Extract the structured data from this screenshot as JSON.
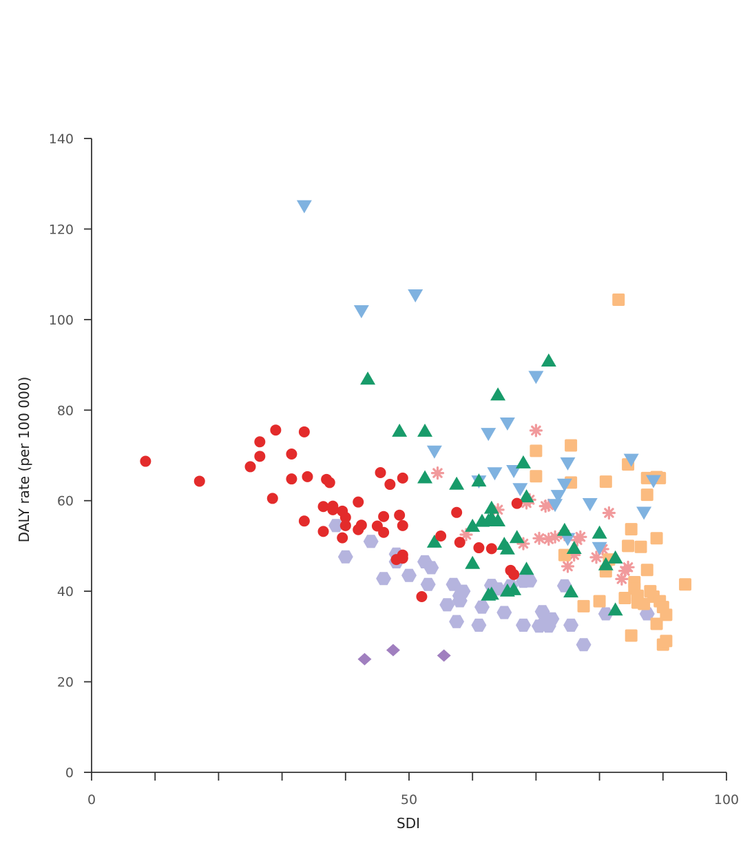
{
  "chart_data": {
    "type": "scatter",
    "title": "",
    "xlabel": "SDI",
    "ylabel": "DALY rate (per 100 000)",
    "xlim": [
      0,
      100
    ],
    "ylim": [
      0,
      140
    ],
    "x_ticks": [
      0,
      50,
      100
    ],
    "x_minor_ticks": [
      10,
      20,
      30,
      40,
      60,
      70,
      80,
      90
    ],
    "y_ticks": [
      0,
      20,
      40,
      60,
      80,
      100,
      120,
      140
    ],
    "grid": false,
    "legend": "none",
    "series": [
      {
        "marker": "circle",
        "color": "#e32b2b",
        "points": [
          [
            8.5,
            68.7
          ],
          [
            17,
            64.3
          ],
          [
            25,
            67.5
          ],
          [
            26.5,
            73
          ],
          [
            26.5,
            69.8
          ],
          [
            28.5,
            60.5
          ],
          [
            29,
            75.6
          ],
          [
            31.5,
            70.3
          ],
          [
            31.5,
            64.8
          ],
          [
            33.5,
            75.2
          ],
          [
            33.5,
            55.5
          ],
          [
            34,
            65.3
          ],
          [
            36.5,
            58.7
          ],
          [
            36.5,
            53.2
          ],
          [
            37,
            64.7
          ],
          [
            37.5,
            64
          ],
          [
            38,
            58.8
          ],
          [
            38,
            58
          ],
          [
            39.5,
            51.8
          ],
          [
            39.5,
            57.7
          ],
          [
            40,
            56.3
          ],
          [
            40,
            54.5
          ],
          [
            42,
            59.7
          ],
          [
            42,
            53.6
          ],
          [
            42.5,
            54.6
          ],
          [
            45,
            54.4
          ],
          [
            45.5,
            66.2
          ],
          [
            46,
            56.5
          ],
          [
            46,
            53
          ],
          [
            47,
            63.6
          ],
          [
            48,
            47
          ],
          [
            48.5,
            56.8
          ],
          [
            49,
            54.5
          ],
          [
            49,
            48
          ],
          [
            49,
            47.3
          ],
          [
            49,
            65
          ],
          [
            52,
            38.8
          ],
          [
            55,
            52.2
          ],
          [
            57.5,
            57.4
          ],
          [
            58,
            50.8
          ],
          [
            61,
            49.6
          ],
          [
            63,
            49.4
          ],
          [
            66,
            44.6
          ],
          [
            66.5,
            43.7
          ],
          [
            67,
            59.4
          ]
        ]
      },
      {
        "marker": "triangle-down",
        "color": "#7fb2e0",
        "points": [
          [
            33.5,
            125
          ],
          [
            42.5,
            101.8
          ],
          [
            51,
            105.3
          ],
          [
            54,
            70.8
          ],
          [
            61,
            64.2
          ],
          [
            62.5,
            74.7
          ],
          [
            63.5,
            66
          ],
          [
            65.5,
            77
          ],
          [
            66.5,
            66.5
          ],
          [
            67.5,
            62.5
          ],
          [
            70,
            87.3
          ],
          [
            73,
            59
          ],
          [
            73.5,
            61
          ],
          [
            74.5,
            63.5
          ],
          [
            75,
            68.2
          ],
          [
            75,
            51.5
          ],
          [
            78.5,
            59.2
          ],
          [
            80,
            49.5
          ],
          [
            85,
            69
          ],
          [
            87,
            57.3
          ],
          [
            88.5,
            64.3
          ]
        ]
      },
      {
        "marker": "triangle-up",
        "color": "#189b6a",
        "points": [
          [
            43.5,
            87
          ],
          [
            48.5,
            75.5
          ],
          [
            52.5,
            75.5
          ],
          [
            52.5,
            65.2
          ],
          [
            54,
            51
          ],
          [
            57.5,
            63.8
          ],
          [
            60,
            46.3
          ],
          [
            60,
            54.5
          ],
          [
            61,
            64.5
          ],
          [
            61.5,
            55.6
          ],
          [
            62.5,
            39.3
          ],
          [
            62.5,
            55.7
          ],
          [
            63,
            58.5
          ],
          [
            63,
            56.3
          ],
          [
            63,
            39.5
          ],
          [
            64,
            83.5
          ],
          [
            64,
            55.7
          ],
          [
            65,
            50.5
          ],
          [
            65.5,
            40.2
          ],
          [
            65.5,
            49.5
          ],
          [
            66.5,
            40.5
          ],
          [
            67,
            52
          ],
          [
            68,
            68.5
          ],
          [
            68.5,
            45
          ],
          [
            68.5,
            61
          ],
          [
            72,
            91
          ],
          [
            74.5,
            53.6
          ],
          [
            75.5,
            40
          ],
          [
            76,
            49.6
          ],
          [
            80,
            53
          ],
          [
            81,
            46
          ],
          [
            82.5,
            36
          ],
          [
            82.5,
            47.5
          ]
        ]
      },
      {
        "marker": "square",
        "color": "#fbbb7f",
        "points": [
          [
            70,
            71
          ],
          [
            70,
            65.4
          ],
          [
            74.5,
            48
          ],
          [
            75.5,
            64
          ],
          [
            75.5,
            72.2
          ],
          [
            77.5,
            36.7
          ],
          [
            80,
            37.8
          ],
          [
            81,
            64.2
          ],
          [
            81,
            44.4
          ],
          [
            81.5,
            47
          ],
          [
            83,
            104.4
          ],
          [
            84,
            38.5
          ],
          [
            84.5,
            68
          ],
          [
            84.5,
            50
          ],
          [
            85,
            30.2
          ],
          [
            85,
            53.7
          ],
          [
            85.5,
            42
          ],
          [
            85.5,
            40.6
          ],
          [
            86,
            37.5
          ],
          [
            86,
            39
          ],
          [
            86.5,
            49.8
          ],
          [
            87,
            37.2
          ],
          [
            87.5,
            44.7
          ],
          [
            87.5,
            61.3
          ],
          [
            87.5,
            65
          ],
          [
            88,
            40
          ],
          [
            88.5,
            38.8
          ],
          [
            89,
            51.7
          ],
          [
            89,
            65.2
          ],
          [
            89,
            32.8
          ],
          [
            89.5,
            65
          ],
          [
            89.5,
            37.8
          ],
          [
            90,
            36.5
          ],
          [
            90,
            28.2
          ],
          [
            90.5,
            34.8
          ],
          [
            90.5,
            29
          ],
          [
            93.5,
            41.5
          ]
        ]
      },
      {
        "marker": "hexagon",
        "color": "#b5b4de",
        "points": [
          [
            38.5,
            54.5
          ],
          [
            40,
            47.6
          ],
          [
            44,
            51
          ],
          [
            46,
            42.8
          ],
          [
            48,
            48.2
          ],
          [
            48,
            46.5
          ],
          [
            50,
            43.5
          ],
          [
            52.5,
            46.5
          ],
          [
            53,
            41.5
          ],
          [
            53.5,
            45.2
          ],
          [
            56,
            37
          ],
          [
            57,
            41.5
          ],
          [
            57.5,
            33.3
          ],
          [
            58,
            39
          ],
          [
            58,
            37.9
          ],
          [
            58.5,
            40
          ],
          [
            61,
            32.5
          ],
          [
            61.5,
            36.5
          ],
          [
            63,
            41.3
          ],
          [
            64,
            40.5
          ],
          [
            65,
            35.3
          ],
          [
            66,
            41.2
          ],
          [
            68,
            32.5
          ],
          [
            68,
            42.2
          ],
          [
            69,
            42.3
          ],
          [
            70.5,
            32.3
          ],
          [
            71,
            35.5
          ],
          [
            71.5,
            33.6
          ],
          [
            72,
            32.3
          ],
          [
            72.5,
            33.9
          ],
          [
            74.5,
            41.2
          ],
          [
            75.5,
            32.5
          ],
          [
            77.5,
            28.2
          ],
          [
            81,
            35
          ],
          [
            87.5,
            35
          ]
        ]
      },
      {
        "marker": "asterisk",
        "color": "#f19a9c",
        "points": [
          [
            54.5,
            66.1
          ],
          [
            59,
            52.5
          ],
          [
            64,
            58
          ],
          [
            68,
            50.5
          ],
          [
            68.5,
            59.5
          ],
          [
            69,
            60.2
          ],
          [
            70,
            75.5
          ],
          [
            70.5,
            51.7
          ],
          [
            71.5,
            58.8
          ],
          [
            72,
            59
          ],
          [
            72,
            51.5
          ],
          [
            73,
            52
          ],
          [
            74.5,
            52.5
          ],
          [
            75,
            45.5
          ],
          [
            76,
            48
          ],
          [
            76.5,
            51.3
          ],
          [
            77,
            52
          ],
          [
            79.5,
            47.5
          ],
          [
            80.5,
            49.3
          ],
          [
            81.5,
            57.3
          ],
          [
            83.5,
            42.7
          ],
          [
            84,
            44.5
          ],
          [
            84.5,
            45.3
          ]
        ]
      },
      {
        "marker": "diamond",
        "color": "#a07fbf",
        "points": [
          [
            43,
            25
          ],
          [
            47.5,
            27
          ],
          [
            55.5,
            25.8
          ]
        ]
      }
    ]
  }
}
